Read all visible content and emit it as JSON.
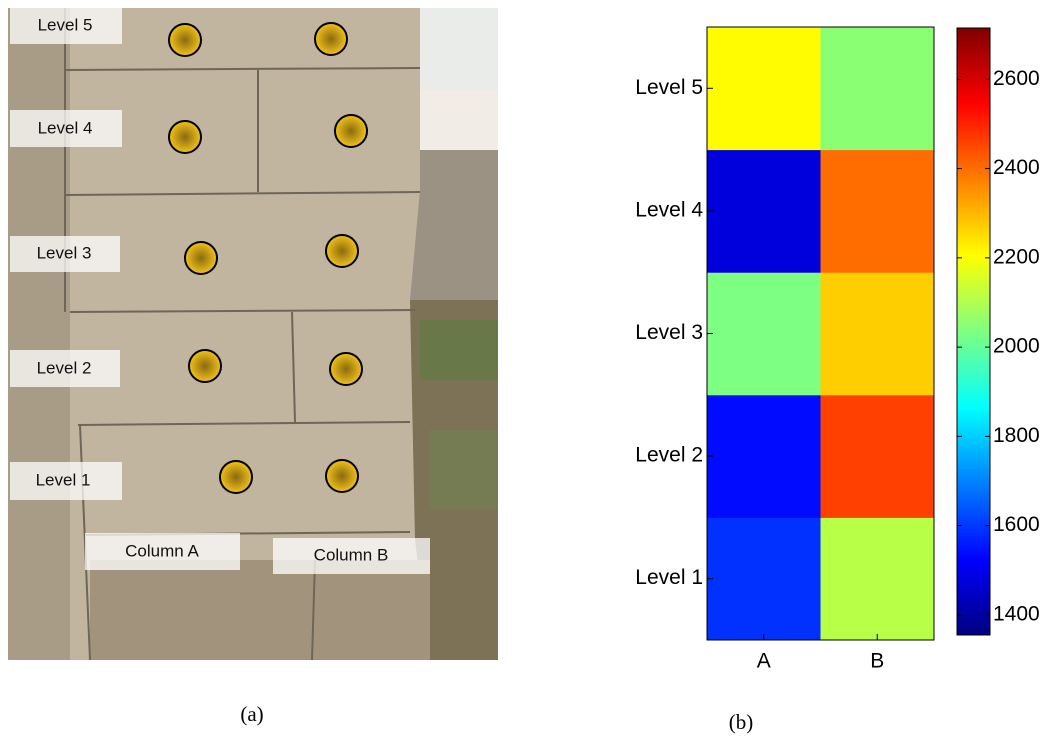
{
  "panel_a": {
    "caption": "(a)",
    "level_labels": [
      "Level 5",
      "Level 4",
      "Level 3",
      "Level 2",
      "Level 1"
    ],
    "column_labels": [
      "Column A",
      "Column B"
    ]
  },
  "chart_data": {
    "type": "heatmap",
    "caption": "(b)",
    "x_categories": [
      "A",
      "B"
    ],
    "y_categories": [
      "Level 1",
      "Level 2",
      "Level 3",
      "Level 4",
      "Level 5"
    ],
    "values": [
      [
        1590,
        2110
      ],
      [
        1540,
        2460
      ],
      [
        2030,
        2270
      ],
      [
        1480,
        2400
      ],
      [
        2210,
        2050
      ]
    ],
    "colormap": "jet",
    "clim": [
      1355,
      2715
    ],
    "cticks": [
      1400,
      1600,
      1800,
      2000,
      2200,
      2400,
      2600
    ]
  }
}
